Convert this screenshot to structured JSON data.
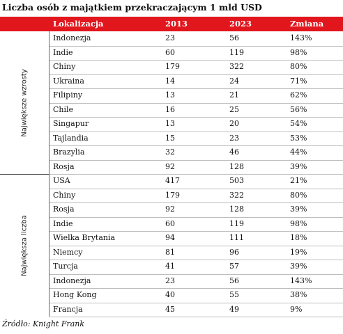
{
  "title": "Liczba osób z majątkiem przekraczającym 1 mld USD",
  "header": {
    "location": "Lokalizacja",
    "y2013": "2013",
    "y2023": "2023",
    "change": "Zmiana"
  },
  "groups": [
    {
      "label": "Największe wzrosty",
      "rows": [
        [
          "Indonezja",
          "23",
          "56",
          "143%"
        ],
        [
          "Indie",
          "60",
          "119",
          "98%"
        ],
        [
          "Chiny",
          "179",
          "322",
          "80%"
        ],
        [
          "Ukraina",
          "14",
          "24",
          "71%"
        ],
        [
          "Filipiny",
          "13",
          "21",
          "62%"
        ],
        [
          "Chile",
          "16",
          "25",
          "56%"
        ],
        [
          "Singapur",
          "13",
          "20",
          "54%"
        ],
        [
          "Tajlandia",
          "15",
          "23",
          "53%"
        ],
        [
          "Brazylia",
          "32",
          "46",
          "44%"
        ],
        [
          "Rosja",
          "92",
          "128",
          "39%"
        ]
      ]
    },
    {
      "label": "Największa liczba",
      "rows": [
        [
          "USA",
          "417",
          "503",
          "21%"
        ],
        [
          "Chiny",
          "179",
          "322",
          "80%"
        ],
        [
          "Rosja",
          "92",
          "128",
          "39%"
        ],
        [
          "Indie",
          "60",
          "119",
          "98%"
        ],
        [
          "Wielka Brytania",
          "94",
          "111",
          "18%"
        ],
        [
          "Niemcy",
          "81",
          "96",
          "19%"
        ],
        [
          "Turcja",
          "41",
          "57",
          "39%"
        ],
        [
          "Indonezja",
          "23",
          "56",
          "143%"
        ],
        [
          "Hong Kong",
          "40",
          "55",
          "38%"
        ],
        [
          "Francja",
          "45",
          "49",
          "9%"
        ]
      ]
    }
  ],
  "source": "Źródło: Knight Frank"
}
